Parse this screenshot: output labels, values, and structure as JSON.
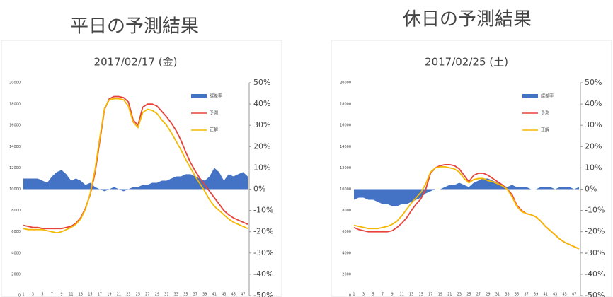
{
  "chart_data": [
    {
      "type": "combo",
      "heading": "平日の予測結果",
      "title": "2017/02/17 (金)",
      "categories": [
        "1",
        null,
        "3",
        null,
        "5",
        null,
        "7",
        null,
        "9",
        null,
        "11",
        null,
        "13",
        null,
        "15",
        null,
        "17",
        null,
        "19",
        null,
        "21",
        null,
        "23",
        null,
        "25",
        null,
        "27",
        null,
        "29",
        null,
        "31",
        null,
        "33",
        null,
        "35",
        null,
        "37",
        null,
        "39",
        null,
        "41",
        null,
        "43",
        null,
        "45",
        null,
        "47",
        null
      ],
      "ylim": [
        0,
        20000
      ],
      "yticks": [
        0,
        2000,
        4000,
        6000,
        8000,
        10000,
        12000,
        14000,
        16000,
        18000,
        20000
      ],
      "y2lim": [
        -50,
        50
      ],
      "y2ticks": [
        {
          "value": -50,
          "label": "-50%"
        },
        {
          "value": -40,
          "label": "-40%"
        },
        {
          "value": -30,
          "label": "-30%"
        },
        {
          "value": -20,
          "label": "-20%"
        },
        {
          "value": -10,
          "label": "-10%"
        },
        {
          "value": 0,
          "label": "0%"
        },
        {
          "value": 10,
          "label": "10%"
        },
        {
          "value": 20,
          "label": "20%"
        },
        {
          "value": 30,
          "label": "30%"
        },
        {
          "value": 40,
          "label": "40%"
        },
        {
          "value": 50,
          "label": "50%"
        }
      ],
      "legend": "upper right",
      "series": [
        {
          "name": "誤差率",
          "type": "area",
          "axis": "y2",
          "color": "#4472c4",
          "values": [
            5,
            5,
            5,
            5,
            4,
            3,
            6,
            8,
            9,
            7,
            4,
            5,
            4,
            2,
            3,
            1,
            0,
            -1,
            0,
            1,
            0,
            -1,
            0,
            1,
            1,
            2,
            2,
            3,
            3,
            4,
            4,
            5,
            6,
            6,
            7,
            7,
            6,
            5,
            4,
            6,
            10,
            8,
            4,
            7,
            6,
            7,
            8,
            6
          ]
        },
        {
          "name": "予測",
          "type": "line",
          "color": "#e8433a",
          "values": [
            6600,
            6500,
            6400,
            6400,
            6300,
            6300,
            6300,
            6300,
            6300,
            6400,
            6500,
            6800,
            7300,
            8200,
            9500,
            11500,
            14500,
            17500,
            18500,
            18700,
            18700,
            18600,
            18200,
            16500,
            16000,
            17700,
            18000,
            18000,
            17800,
            17300,
            16800,
            16200,
            15500,
            14600,
            13500,
            12500,
            11700,
            11000,
            10400,
            9800,
            9200,
            8600,
            8000,
            7600,
            7300,
            7100,
            6900,
            6700
          ]
        },
        {
          "name": "正解",
          "type": "line",
          "color": "#f5b800",
          "values": [
            6300,
            6200,
            6200,
            6200,
            6200,
            6100,
            6000,
            5900,
            6000,
            6200,
            6400,
            6700,
            7200,
            8100,
            9600,
            11800,
            14800,
            17600,
            18400,
            18500,
            18500,
            18400,
            17800,
            16300,
            15800,
            17200,
            17500,
            17400,
            17100,
            16500,
            16000,
            15300,
            14500,
            13700,
            12800,
            12000,
            11200,
            10500,
            9800,
            9000,
            8400,
            8000,
            7600,
            7200,
            6900,
            6700,
            6500,
            6300
          ]
        }
      ]
    },
    {
      "type": "combo",
      "heading": "休日の予測結果",
      "title": "2017/02/25 (土)",
      "categories": [
        "1",
        null,
        "3",
        null,
        "5",
        null,
        "7",
        null,
        "9",
        null,
        "11",
        null,
        "13",
        null,
        "15",
        null,
        "17",
        null,
        "19",
        null,
        "21",
        null,
        "23",
        null,
        "25",
        null,
        "27",
        null,
        "29",
        null,
        "31",
        null,
        "33",
        null,
        "35",
        null,
        "37",
        null,
        "39",
        null,
        "41",
        null,
        "43",
        null,
        "45",
        null,
        "47",
        null
      ],
      "ylim": [
        0,
        20000
      ],
      "yticks": [
        0,
        2000,
        4000,
        6000,
        8000,
        10000,
        12000,
        14000,
        16000,
        18000,
        20000
      ],
      "y2lim": [
        -50,
        50
      ],
      "y2ticks": [
        {
          "value": -50,
          "label": "-50%"
        },
        {
          "value": -40,
          "label": "-40%"
        },
        {
          "value": -30,
          "label": "-30%"
        },
        {
          "value": -20,
          "label": "-20%"
        },
        {
          "value": -10,
          "label": "-10%"
        },
        {
          "value": 0,
          "label": "0%"
        },
        {
          "value": 10,
          "label": "10%"
        },
        {
          "value": 20,
          "label": "20%"
        },
        {
          "value": 30,
          "label": "30%"
        },
        {
          "value": 40,
          "label": "40%"
        },
        {
          "value": 50,
          "label": "50%"
        }
      ],
      "legend": "upper right",
      "series": [
        {
          "name": "誤差率",
          "type": "area",
          "axis": "y2",
          "color": "#4472c4",
          "values": [
            -5,
            -4,
            -4,
            -5,
            -5,
            -6,
            -7,
            -7,
            -8,
            -8,
            -7,
            -7,
            -6,
            -5,
            -4,
            -2,
            -1,
            0,
            0,
            1,
            2,
            2,
            3,
            2,
            1,
            3,
            4,
            5,
            5,
            4,
            3,
            2,
            1,
            2,
            1,
            1,
            1,
            0,
            0,
            1,
            1,
            1,
            0,
            1,
            1,
            1,
            0,
            1
          ]
        },
        {
          "name": "予測",
          "type": "line",
          "color": "#e8433a",
          "values": [
            6400,
            6200,
            6100,
            6000,
            6000,
            6000,
            6000,
            6000,
            6100,
            6400,
            6800,
            7300,
            8000,
            8600,
            9100,
            10000,
            11500,
            12000,
            12200,
            12300,
            12300,
            12200,
            11900,
            11300,
            10700,
            11300,
            11500,
            11500,
            11300,
            11000,
            10700,
            10400,
            10000,
            9500,
            8500,
            8000,
            7700,
            7600,
            7400,
            7000,
            6500,
            6100,
            5700,
            5300,
            5000,
            4800,
            4600,
            4400
          ]
        },
        {
          "name": "正解",
          "type": "line",
          "color": "#f5b800",
          "values": [
            6600,
            6500,
            6400,
            6300,
            6300,
            6300,
            6400,
            6500,
            6700,
            7000,
            7500,
            8100,
            8700,
            9200,
            9700,
            10500,
            11600,
            12000,
            12100,
            12100,
            12000,
            11900,
            11600,
            11000,
            10600,
            10900,
            11000,
            11000,
            10800,
            10700,
            10500,
            10300,
            10000,
            9300,
            8400,
            7900,
            7700,
            7600,
            7400,
            7000,
            6500,
            6100,
            5700,
            5300,
            5000,
            4800,
            4600,
            4400
          ]
        }
      ]
    }
  ]
}
